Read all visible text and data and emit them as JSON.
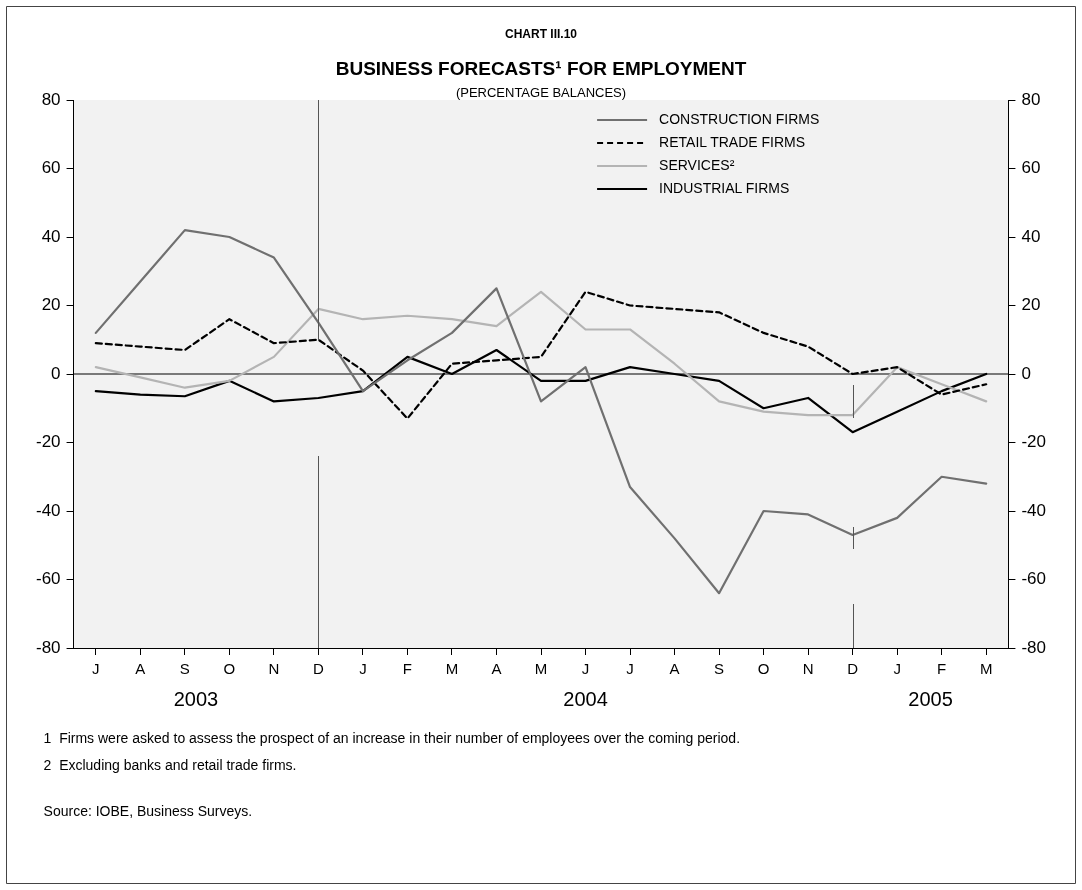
{
  "chart_data": {
    "type": "line",
    "title": "BUSINESS FORECASTS¹ FOR EMPLOYMENT",
    "subtitle": "(PERCENTAGE BALANCES)",
    "categories": [
      "J",
      "A",
      "S",
      "O",
      "N",
      "D",
      "J",
      "F",
      "M",
      "A",
      "M",
      "J",
      "J",
      "A",
      "S",
      "O",
      "N",
      "D",
      "J",
      "F",
      "M"
    ],
    "series": [
      {
        "name": "CONSTRUCTION FIRMS",
        "color": "#707070",
        "line_style": "solid",
        "values": [
          12,
          27,
          42,
          40,
          34,
          15,
          -5,
          4,
          12,
          25,
          -8,
          2,
          -33,
          -48,
          -64,
          -40,
          -41,
          -47,
          -42,
          -30,
          -32
        ]
      },
      {
        "name": "RETAIL TRADE FIRMS",
        "color": "#000000",
        "line_style": "dashed",
        "values": [
          9,
          8,
          7,
          16,
          9,
          10,
          1,
          -13,
          3,
          4,
          5,
          24,
          20,
          19,
          18,
          12,
          8,
          0,
          2,
          -6,
          -3
        ]
      },
      {
        "name": "SERVICES²",
        "color": "#b4b4b4",
        "line_style": "solid",
        "values": [
          2,
          -1,
          -4,
          -2,
          5,
          19,
          16,
          17,
          16,
          14,
          24,
          13,
          13,
          3,
          -8,
          -11,
          -12,
          -12,
          2,
          -3,
          -8
        ]
      },
      {
        "name": "INDUSTRIAL FIRMS",
        "color": "#000000",
        "line_style": "solid",
        "values": [
          -5,
          -6,
          -6.5,
          -2,
          -8,
          -7,
          -5,
          5,
          0,
          7,
          -2,
          -2,
          2,
          0,
          -2,
          -10,
          -7,
          -17,
          -11,
          -5,
          0
        ]
      }
    ],
    "ylim": [
      -80,
      80
    ],
    "yticks": [
      -80,
      -60,
      -40,
      -20,
      0,
      20,
      40,
      60,
      80
    ],
    "y2lim": [
      -80,
      80
    ],
    "y2ticks": [
      -80,
      -60,
      -40,
      -20,
      0,
      20,
      40,
      60,
      80
    ],
    "ref_lines": [
      {
        "axis": "y",
        "value": 0,
        "color": "#000000"
      }
    ],
    "annotations": [
      "CHART III.10",
      "2003",
      "2004",
      "2005",
      "1  Firms were asked to assess the prospect of an increase in their number of employees over the coming period.",
      "2  Excluding banks and retail trade firms.",
      "Source: IOBE, Business Surveys."
    ],
    "legend": "top right",
    "grid": false,
    "marker": "none"
  }
}
